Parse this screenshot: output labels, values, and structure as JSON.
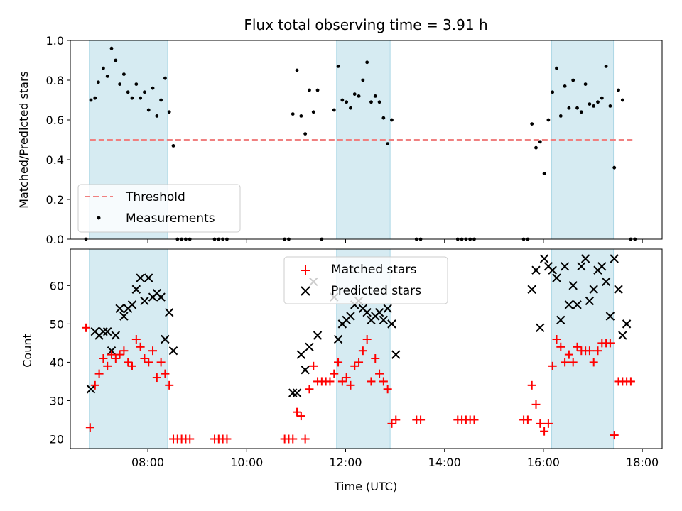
{
  "chart_data": [
    {
      "type": "scatter",
      "title": "Flux total observing time = 3.91 h",
      "ylabel": "Matched/Predicted stars",
      "xlabel": "",
      "xlim": [
        "06:26",
        "18:24"
      ],
      "ylim": [
        0,
        1.0
      ],
      "y_ticks": [
        "0.0",
        "0.2",
        "0.4",
        "0.6",
        "0.8",
        "1.0"
      ],
      "shaded_intervals": [
        [
          "06:49",
          "08:24"
        ],
        [
          "11:49",
          "12:54"
        ],
        [
          "16:10",
          "17:25"
        ]
      ],
      "threshold": 0.5,
      "threshold_x": [
        "06:50",
        "17:48"
      ],
      "legend": {
        "placement": "lower-left",
        "entries": [
          "Threshold",
          "Measurements"
        ]
      },
      "series": [
        {
          "name": "Measurements",
          "points": [
            [
              "06:45",
              0.0
            ],
            [
              "06:51",
              0.7
            ],
            [
              "06:56",
              0.71
            ],
            [
              "07:00",
              0.79
            ],
            [
              "07:06",
              0.86
            ],
            [
              "07:11",
              0.82
            ],
            [
              "07:16",
              0.96
            ],
            [
              "07:21",
              0.9
            ],
            [
              "07:26",
              0.78
            ],
            [
              "07:31",
              0.83
            ],
            [
              "07:36",
              0.74
            ],
            [
              "07:41",
              0.71
            ],
            [
              "07:46",
              0.78
            ],
            [
              "07:51",
              0.71
            ],
            [
              "07:56",
              0.74
            ],
            [
              "08:01",
              0.65
            ],
            [
              "08:06",
              0.76
            ],
            [
              "08:11",
              0.62
            ],
            [
              "08:16",
              0.7
            ],
            [
              "08:21",
              0.81
            ],
            [
              "08:26",
              0.64
            ],
            [
              "08:31",
              0.47
            ],
            [
              "08:36",
              0.0
            ],
            [
              "08:41",
              0.0
            ],
            [
              "08:46",
              0.0
            ],
            [
              "08:51",
              0.0
            ],
            [
              "09:21",
              0.0
            ],
            [
              "09:26",
              0.0
            ],
            [
              "09:31",
              0.0
            ],
            [
              "09:36",
              0.0
            ],
            [
              "10:46",
              0.0
            ],
            [
              "10:51",
              0.0
            ],
            [
              "10:56",
              0.63
            ],
            [
              "11:01",
              0.85
            ],
            [
              "11:06",
              0.62
            ],
            [
              "11:11",
              0.53
            ],
            [
              "11:16",
              0.75
            ],
            [
              "11:21",
              0.64
            ],
            [
              "11:26",
              0.75
            ],
            [
              "11:31",
              0.0
            ],
            [
              "11:46",
              0.65
            ],
            [
              "11:51",
              0.87
            ],
            [
              "11:56",
              0.7
            ],
            [
              "12:01",
              0.69
            ],
            [
              "12:06",
              0.66
            ],
            [
              "12:11",
              0.73
            ],
            [
              "12:16",
              0.72
            ],
            [
              "12:21",
              0.8
            ],
            [
              "12:26",
              0.89
            ],
            [
              "12:31",
              0.69
            ],
            [
              "12:36",
              0.72
            ],
            [
              "12:41",
              0.69
            ],
            [
              "12:46",
              0.61
            ],
            [
              "12:51",
              0.48
            ],
            [
              "12:56",
              0.6
            ],
            [
              "13:26",
              0.0
            ],
            [
              "13:31",
              0.0
            ],
            [
              "14:16",
              0.0
            ],
            [
              "14:21",
              0.0
            ],
            [
              "14:26",
              0.0
            ],
            [
              "14:31",
              0.0
            ],
            [
              "14:36",
              0.0
            ],
            [
              "15:36",
              0.0
            ],
            [
              "15:41",
              0.0
            ],
            [
              "15:46",
              0.58
            ],
            [
              "15:51",
              0.46
            ],
            [
              "15:56",
              0.49
            ],
            [
              "16:01",
              0.33
            ],
            [
              "16:06",
              0.6
            ],
            [
              "16:11",
              0.74
            ],
            [
              "16:16",
              0.86
            ],
            [
              "16:21",
              0.62
            ],
            [
              "16:26",
              0.77
            ],
            [
              "16:31",
              0.66
            ],
            [
              "16:36",
              0.8
            ],
            [
              "16:41",
              0.66
            ],
            [
              "16:46",
              0.64
            ],
            [
              "16:51",
              0.78
            ],
            [
              "16:56",
              0.68
            ],
            [
              "17:01",
              0.67
            ],
            [
              "17:06",
              0.69
            ],
            [
              "17:11",
              0.71
            ],
            [
              "17:16",
              0.87
            ],
            [
              "17:21",
              0.67
            ],
            [
              "17:26",
              0.36
            ],
            [
              "17:31",
              0.75
            ],
            [
              "17:36",
              0.7
            ],
            [
              "17:46",
              0.0
            ],
            [
              "17:51",
              0.0
            ]
          ]
        }
      ]
    },
    {
      "type": "scatter",
      "title": "",
      "ylabel": "Count",
      "xlabel": "Time (UTC)",
      "xlim": [
        "06:26",
        "18:24"
      ],
      "ylim": [
        17.5,
        69.5
      ],
      "y_ticks": [
        "20",
        "30",
        "40",
        "50",
        "60"
      ],
      "x_ticks": [
        "08:00",
        "10:00",
        "12:00",
        "14:00",
        "16:00",
        "18:00"
      ],
      "shaded_intervals": [
        [
          "06:49",
          "08:24"
        ],
        [
          "11:49",
          "12:54"
        ],
        [
          "16:10",
          "17:25"
        ]
      ],
      "legend": {
        "placement": "upper-center",
        "entries": [
          "Matched stars",
          "Predicted stars"
        ]
      },
      "series": [
        {
          "name": "Matched stars",
          "points": [
            [
              "06:45",
              49
            ],
            [
              "06:50",
              23
            ],
            [
              "06:56",
              34
            ],
            [
              "07:01",
              37
            ],
            [
              "07:06",
              41
            ],
            [
              "07:11",
              39
            ],
            [
              "07:16",
              42
            ],
            [
              "07:21",
              41
            ],
            [
              "07:26",
              42
            ],
            [
              "07:31",
              43
            ],
            [
              "07:36",
              40
            ],
            [
              "07:41",
              39
            ],
            [
              "07:46",
              46
            ],
            [
              "07:51",
              44
            ],
            [
              "07:56",
              41
            ],
            [
              "08:01",
              40
            ],
            [
              "08:06",
              43
            ],
            [
              "08:11",
              36
            ],
            [
              "08:16",
              40
            ],
            [
              "08:21",
              37
            ],
            [
              "08:26",
              34
            ],
            [
              "08:31",
              20
            ],
            [
              "08:36",
              20
            ],
            [
              "08:41",
              20
            ],
            [
              "08:46",
              20
            ],
            [
              "08:51",
              20
            ],
            [
              "09:21",
              20
            ],
            [
              "09:26",
              20
            ],
            [
              "09:31",
              20
            ],
            [
              "09:36",
              20
            ],
            [
              "10:46",
              20
            ],
            [
              "10:51",
              20
            ],
            [
              "10:56",
              20
            ],
            [
              "11:01",
              27
            ],
            [
              "11:06",
              26
            ],
            [
              "11:11",
              20
            ],
            [
              "11:16",
              33
            ],
            [
              "11:21",
              39
            ],
            [
              "11:26",
              35
            ],
            [
              "11:31",
              35
            ],
            [
              "11:36",
              35
            ],
            [
              "11:41",
              35
            ],
            [
              "11:46",
              37
            ],
            [
              "11:51",
              40
            ],
            [
              "11:56",
              35
            ],
            [
              "12:01",
              36
            ],
            [
              "12:06",
              34
            ],
            [
              "12:11",
              39
            ],
            [
              "12:16",
              40
            ],
            [
              "12:21",
              43
            ],
            [
              "12:26",
              46
            ],
            [
              "12:31",
              35
            ],
            [
              "12:36",
              41
            ],
            [
              "12:41",
              37
            ],
            [
              "12:46",
              35
            ],
            [
              "12:51",
              33
            ],
            [
              "12:56",
              24
            ],
            [
              "13:01",
              25
            ],
            [
              "13:26",
              25
            ],
            [
              "13:31",
              25
            ],
            [
              "14:16",
              25
            ],
            [
              "14:21",
              25
            ],
            [
              "14:26",
              25
            ],
            [
              "14:31",
              25
            ],
            [
              "14:36",
              25
            ],
            [
              "15:36",
              25
            ],
            [
              "15:41",
              25
            ],
            [
              "15:46",
              34
            ],
            [
              "15:51",
              29
            ],
            [
              "15:56",
              24
            ],
            [
              "16:01",
              22
            ],
            [
              "16:06",
              24
            ],
            [
              "16:11",
              39
            ],
            [
              "16:16",
              46
            ],
            [
              "16:21",
              44
            ],
            [
              "16:26",
              40
            ],
            [
              "16:31",
              42
            ],
            [
              "16:36",
              40
            ],
            [
              "16:41",
              44
            ],
            [
              "16:46",
              43
            ],
            [
              "16:51",
              43
            ],
            [
              "16:56",
              43
            ],
            [
              "17:01",
              40
            ],
            [
              "17:06",
              43
            ],
            [
              "17:11",
              45
            ],
            [
              "17:16",
              45
            ],
            [
              "17:21",
              45
            ],
            [
              "17:26",
              21
            ],
            [
              "17:31",
              35
            ],
            [
              "17:36",
              35
            ],
            [
              "17:41",
              35
            ],
            [
              "17:46",
              35
            ]
          ]
        },
        {
          "name": "Predicted stars",
          "points": [
            [
              "06:51",
              33
            ],
            [
              "06:56",
              48
            ],
            [
              "07:01",
              47
            ],
            [
              "07:06",
              48
            ],
            [
              "07:11",
              48
            ],
            [
              "07:16",
              43
            ],
            [
              "07:21",
              47
            ],
            [
              "07:26",
              54
            ],
            [
              "07:31",
              52
            ],
            [
              "07:36",
              54
            ],
            [
              "07:41",
              55
            ],
            [
              "07:46",
              59
            ],
            [
              "07:51",
              62
            ],
            [
              "07:56",
              56
            ],
            [
              "08:01",
              62
            ],
            [
              "08:06",
              57
            ],
            [
              "08:11",
              58
            ],
            [
              "08:16",
              57
            ],
            [
              "08:21",
              46
            ],
            [
              "08:26",
              53
            ],
            [
              "08:31",
              43
            ],
            [
              "10:56",
              32
            ],
            [
              "11:01",
              32
            ],
            [
              "11:06",
              42
            ],
            [
              "11:11",
              38
            ],
            [
              "11:16",
              44
            ],
            [
              "11:21",
              61
            ],
            [
              "11:26",
              47
            ],
            [
              "11:46",
              57
            ],
            [
              "11:51",
              46
            ],
            [
              "11:56",
              50
            ],
            [
              "12:01",
              51
            ],
            [
              "12:06",
              52
            ],
            [
              "12:11",
              55
            ],
            [
              "12:16",
              56
            ],
            [
              "12:21",
              54
            ],
            [
              "12:26",
              53
            ],
            [
              "12:31",
              51
            ],
            [
              "12:36",
              52
            ],
            [
              "12:41",
              53
            ],
            [
              "12:46",
              51
            ],
            [
              "12:51",
              54
            ],
            [
              "12:56",
              50
            ],
            [
              "13:01",
              42
            ],
            [
              "15:46",
              59
            ],
            [
              "15:51",
              64
            ],
            [
              "15:56",
              49
            ],
            [
              "16:01",
              67
            ],
            [
              "16:06",
              65
            ],
            [
              "16:11",
              64
            ],
            [
              "16:16",
              62
            ],
            [
              "16:21",
              51
            ],
            [
              "16:26",
              65
            ],
            [
              "16:31",
              55
            ],
            [
              "16:36",
              60
            ],
            [
              "16:41",
              55
            ],
            [
              "16:46",
              65
            ],
            [
              "16:51",
              67
            ],
            [
              "16:56",
              56
            ],
            [
              "17:01",
              59
            ],
            [
              "17:06",
              64
            ],
            [
              "17:11",
              65
            ],
            [
              "17:16",
              61
            ],
            [
              "17:21",
              52
            ],
            [
              "17:26",
              67
            ],
            [
              "17:31",
              59
            ],
            [
              "17:36",
              47
            ],
            [
              "17:41",
              50
            ]
          ]
        }
      ]
    }
  ],
  "colors": {
    "shade": "#add8e6",
    "threshold": "#f08080",
    "measurements": "#000000",
    "matched": "#ff0000",
    "predicted": "#000000"
  }
}
